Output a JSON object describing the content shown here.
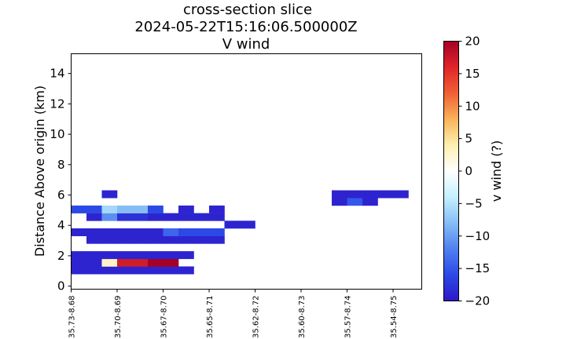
{
  "chart_data": {
    "type": "heatmap",
    "title_lines": [
      "cross-section slice",
      "2024-05-22T15:16:06.500000Z",
      "V wind"
    ],
    "ylabel": "Distance Above origin (km)",
    "xlabel": "",
    "ylim": [
      -0.2,
      15.3
    ],
    "yticks": [
      "0",
      "2",
      "4",
      "6",
      "8",
      "10",
      "12",
      "14"
    ],
    "xtick_labels": [
      "35.73-8.68",
      "35.70-8.69",
      "35.67-8.70",
      "35.65-8.71",
      "35.62-8.72",
      "35.60-8.73",
      "35.57-8.74",
      "35.54-8.75"
    ],
    "grid": false,
    "colorbar": {
      "label": "v wind (?)",
      "range": [
        -20,
        20
      ],
      "ticks": [
        "20",
        "15",
        "10",
        "5",
        "0",
        "−5",
        "−10",
        "−15",
        "−20"
      ],
      "colormap": "RdYlBu_r",
      "colors": [
        "#2d18c8",
        "#2c49e6",
        "#4f80f0",
        "#86bdf5",
        "#c4f0ff",
        "#ffffff",
        "#fdefb0",
        "#f9b35a",
        "#f06035",
        "#e0252a",
        "#a50026"
      ]
    },
    "cells": [
      {
        "col": 0,
        "row": 7,
        "v": -19
      },
      {
        "col": 1,
        "row": 7,
        "v": -19
      },
      {
        "col": 2,
        "row": 7,
        "v": -19
      },
      {
        "col": 3,
        "row": 7,
        "v": -19
      },
      {
        "col": 4,
        "row": 7,
        "v": -19
      },
      {
        "col": 5,
        "row": 7,
        "v": -19
      },
      {
        "col": 6,
        "row": 7,
        "v": -19
      },
      {
        "col": 7,
        "row": 7,
        "v": -19
      },
      {
        "col": 0,
        "row": 8,
        "v": -19
      },
      {
        "col": 1,
        "row": 8,
        "v": -19
      },
      {
        "col": 2,
        "row": 8,
        "v": 3
      },
      {
        "col": 3,
        "row": 8,
        "v": 17
      },
      {
        "col": 4,
        "row": 8,
        "v": 17
      },
      {
        "col": 5,
        "row": 8,
        "v": 20
      },
      {
        "col": 6,
        "row": 8,
        "v": 20
      },
      {
        "col": 0,
        "row": 9,
        "v": -19
      },
      {
        "col": 1,
        "row": 9,
        "v": -19
      },
      {
        "col": 2,
        "row": 9,
        "v": -19
      },
      {
        "col": 3,
        "row": 9,
        "v": -19
      },
      {
        "col": 4,
        "row": 9,
        "v": -19
      },
      {
        "col": 5,
        "row": 9,
        "v": -19
      },
      {
        "col": 6,
        "row": 9,
        "v": -19
      },
      {
        "col": 7,
        "row": 9,
        "v": -19
      },
      {
        "col": 1,
        "row": 11,
        "v": -19
      },
      {
        "col": 2,
        "row": 11,
        "v": -19
      },
      {
        "col": 3,
        "row": 11,
        "v": -19
      },
      {
        "col": 4,
        "row": 11,
        "v": -19
      },
      {
        "col": 5,
        "row": 11,
        "v": -19
      },
      {
        "col": 6,
        "row": 11,
        "v": -19
      },
      {
        "col": 7,
        "row": 11,
        "v": -19
      },
      {
        "col": 8,
        "row": 11,
        "v": -19
      },
      {
        "col": 9,
        "row": 11,
        "v": -19
      },
      {
        "col": 0,
        "row": 12,
        "v": -19
      },
      {
        "col": 1,
        "row": 12,
        "v": -19
      },
      {
        "col": 2,
        "row": 12,
        "v": -19
      },
      {
        "col": 3,
        "row": 12,
        "v": -19
      },
      {
        "col": 4,
        "row": 12,
        "v": -19
      },
      {
        "col": 5,
        "row": 12,
        "v": -19
      },
      {
        "col": 6,
        "row": 12,
        "v": -14
      },
      {
        "col": 7,
        "row": 12,
        "v": -16
      },
      {
        "col": 8,
        "row": 12,
        "v": -16
      },
      {
        "col": 9,
        "row": 12,
        "v": -16
      },
      {
        "col": 10,
        "row": 13,
        "v": -19
      },
      {
        "col": 11,
        "row": 13,
        "v": -19
      },
      {
        "col": 1,
        "row": 14,
        "v": -19
      },
      {
        "col": 2,
        "row": 14,
        "v": -11
      },
      {
        "col": 3,
        "row": 14,
        "v": -18
      },
      {
        "col": 4,
        "row": 14,
        "v": -18
      },
      {
        "col": 5,
        "row": 14,
        "v": -19
      },
      {
        "col": 6,
        "row": 14,
        "v": -19
      },
      {
        "col": 7,
        "row": 14,
        "v": -19
      },
      {
        "col": 8,
        "row": 14,
        "v": -19
      },
      {
        "col": 9,
        "row": 14,
        "v": -19
      },
      {
        "col": 0,
        "row": 15,
        "v": -16
      },
      {
        "col": 1,
        "row": 15,
        "v": -16
      },
      {
        "col": 2,
        "row": 15,
        "v": -6
      },
      {
        "col": 3,
        "row": 15,
        "v": -8
      },
      {
        "col": 4,
        "row": 15,
        "v": -8
      },
      {
        "col": 5,
        "row": 15,
        "v": -16
      },
      {
        "col": 7,
        "row": 15,
        "v": -19
      },
      {
        "col": 9,
        "row": 15,
        "v": -19
      },
      {
        "col": 17,
        "row": 16,
        "v": -19
      },
      {
        "col": 18,
        "row": 16,
        "v": -15
      },
      {
        "col": 19,
        "row": 16,
        "v": -19
      },
      {
        "col": 2,
        "row": 17,
        "v": -19
      },
      {
        "col": 17,
        "row": 17,
        "v": -19
      },
      {
        "col": 18,
        "row": 17,
        "v": -19
      },
      {
        "col": 19,
        "row": 17,
        "v": -19
      },
      {
        "col": 20,
        "row": 17,
        "v": -19
      },
      {
        "col": 21,
        "row": 17,
        "v": -19
      }
    ]
  }
}
